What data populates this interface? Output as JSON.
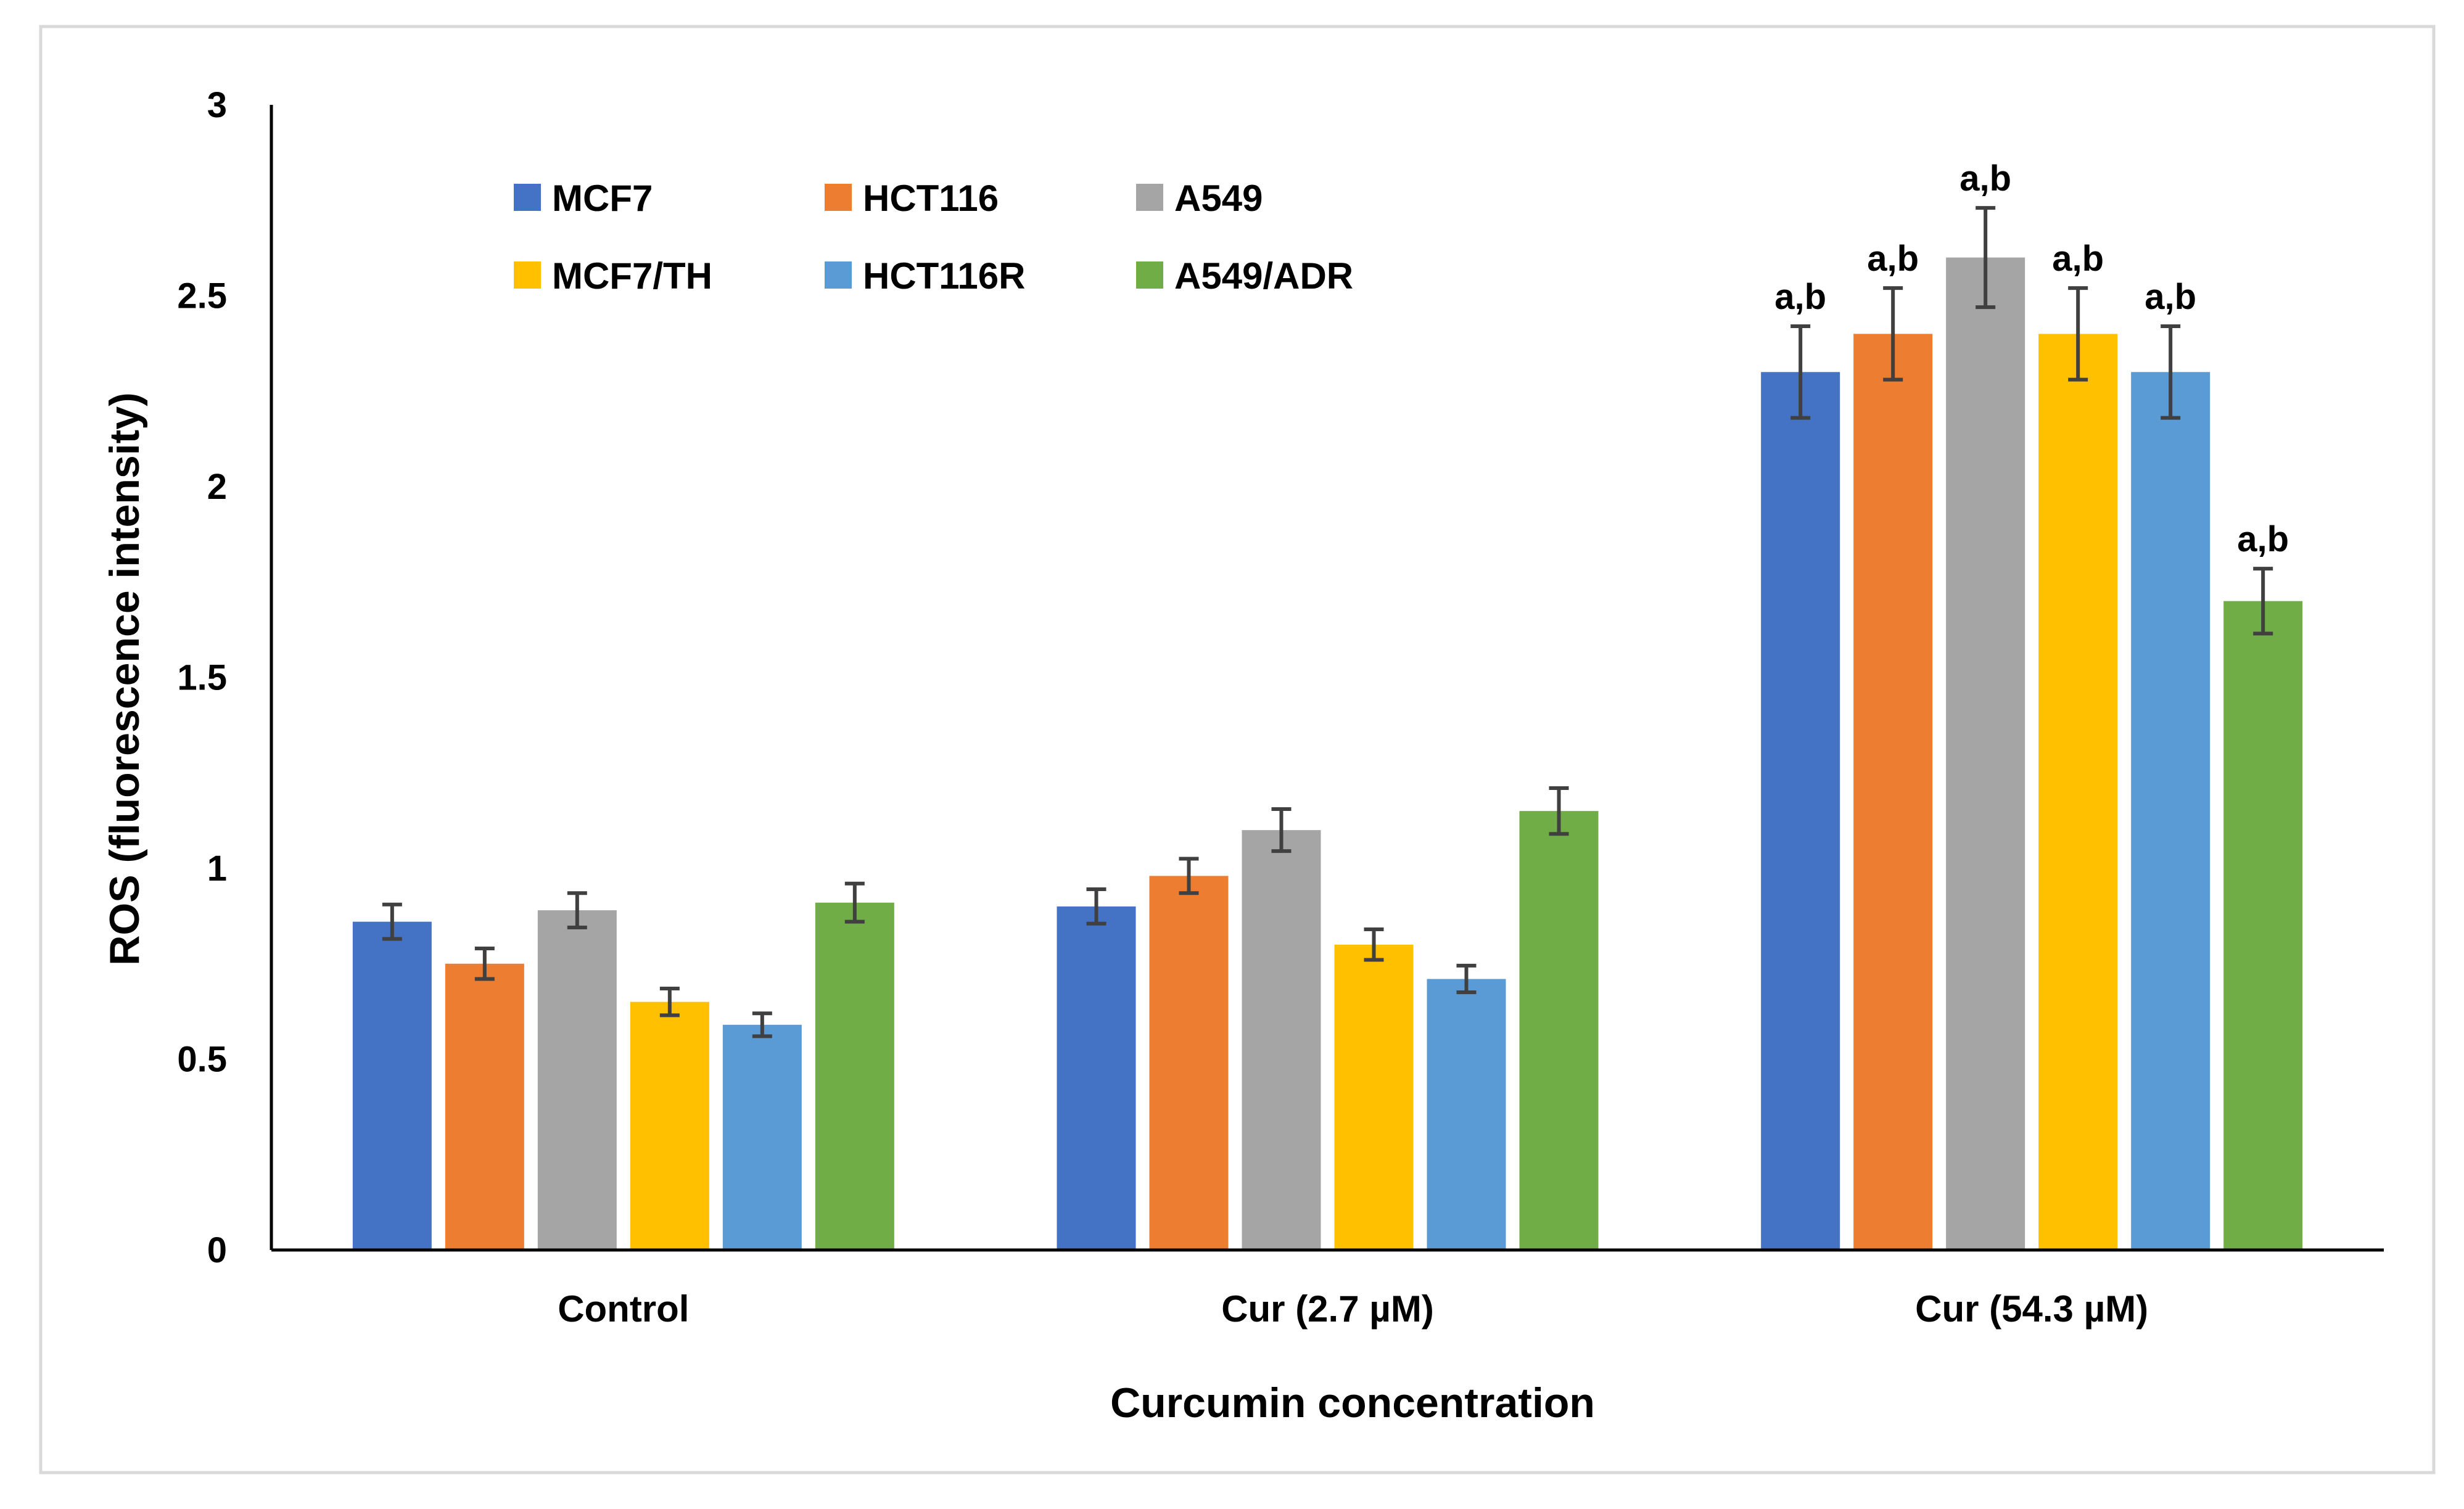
{
  "chart_data": {
    "type": "bar",
    "title": "",
    "xlabel": "Curcumin concentration",
    "ylabel": "ROS (fluorescence intensity)",
    "ylim": [
      0,
      3
    ],
    "yticks": [
      "0",
      "0.5",
      "1",
      "1.5",
      "2",
      "2.5",
      "3"
    ],
    "ytick_values": [
      0,
      0.5,
      1,
      1.5,
      2,
      2.5,
      3
    ],
    "grid": false,
    "legend_position": "top-left",
    "categories": [
      "Control",
      "Cur (2.7 µM)",
      "Cur (54.3 µM)"
    ],
    "series": [
      {
        "name": "MCF7",
        "color": "#4472C4",
        "values": [
          0.86,
          0.9,
          2.3
        ],
        "errors": [
          0.045,
          0.045,
          0.12
        ],
        "annotations": [
          "",
          "",
          "a,b"
        ]
      },
      {
        "name": "HCT116",
        "color": "#ED7D31",
        "values": [
          0.75,
          0.98,
          2.4
        ],
        "errors": [
          0.04,
          0.045,
          0.12
        ],
        "annotations": [
          "",
          "",
          "a,b"
        ]
      },
      {
        "name": "A549",
        "color": "#A5A5A5",
        "values": [
          0.89,
          1.1,
          2.6
        ],
        "errors": [
          0.045,
          0.055,
          0.13
        ],
        "annotations": [
          "",
          "",
          "a,b"
        ]
      },
      {
        "name": "MCF7/TH",
        "color": "#FFC000",
        "values": [
          0.65,
          0.8,
          2.4
        ],
        "errors": [
          0.035,
          0.04,
          0.12
        ],
        "annotations": [
          "",
          "",
          "a,b"
        ]
      },
      {
        "name": "HCT116R",
        "color": "#5B9BD5",
        "values": [
          0.59,
          0.71,
          2.3
        ],
        "errors": [
          0.03,
          0.035,
          0.12
        ],
        "annotations": [
          "",
          "",
          "a,b"
        ]
      },
      {
        "name": "A549/ADR",
        "color": "#70AD47",
        "values": [
          0.91,
          1.15,
          1.7
        ],
        "errors": [
          0.05,
          0.06,
          0.085
        ],
        "annotations": [
          "",
          "",
          "a,b"
        ]
      }
    ]
  },
  "colors": {
    "axis": "#000000",
    "error_bar": "#404040",
    "frame_border": "#D9D9D9"
  }
}
